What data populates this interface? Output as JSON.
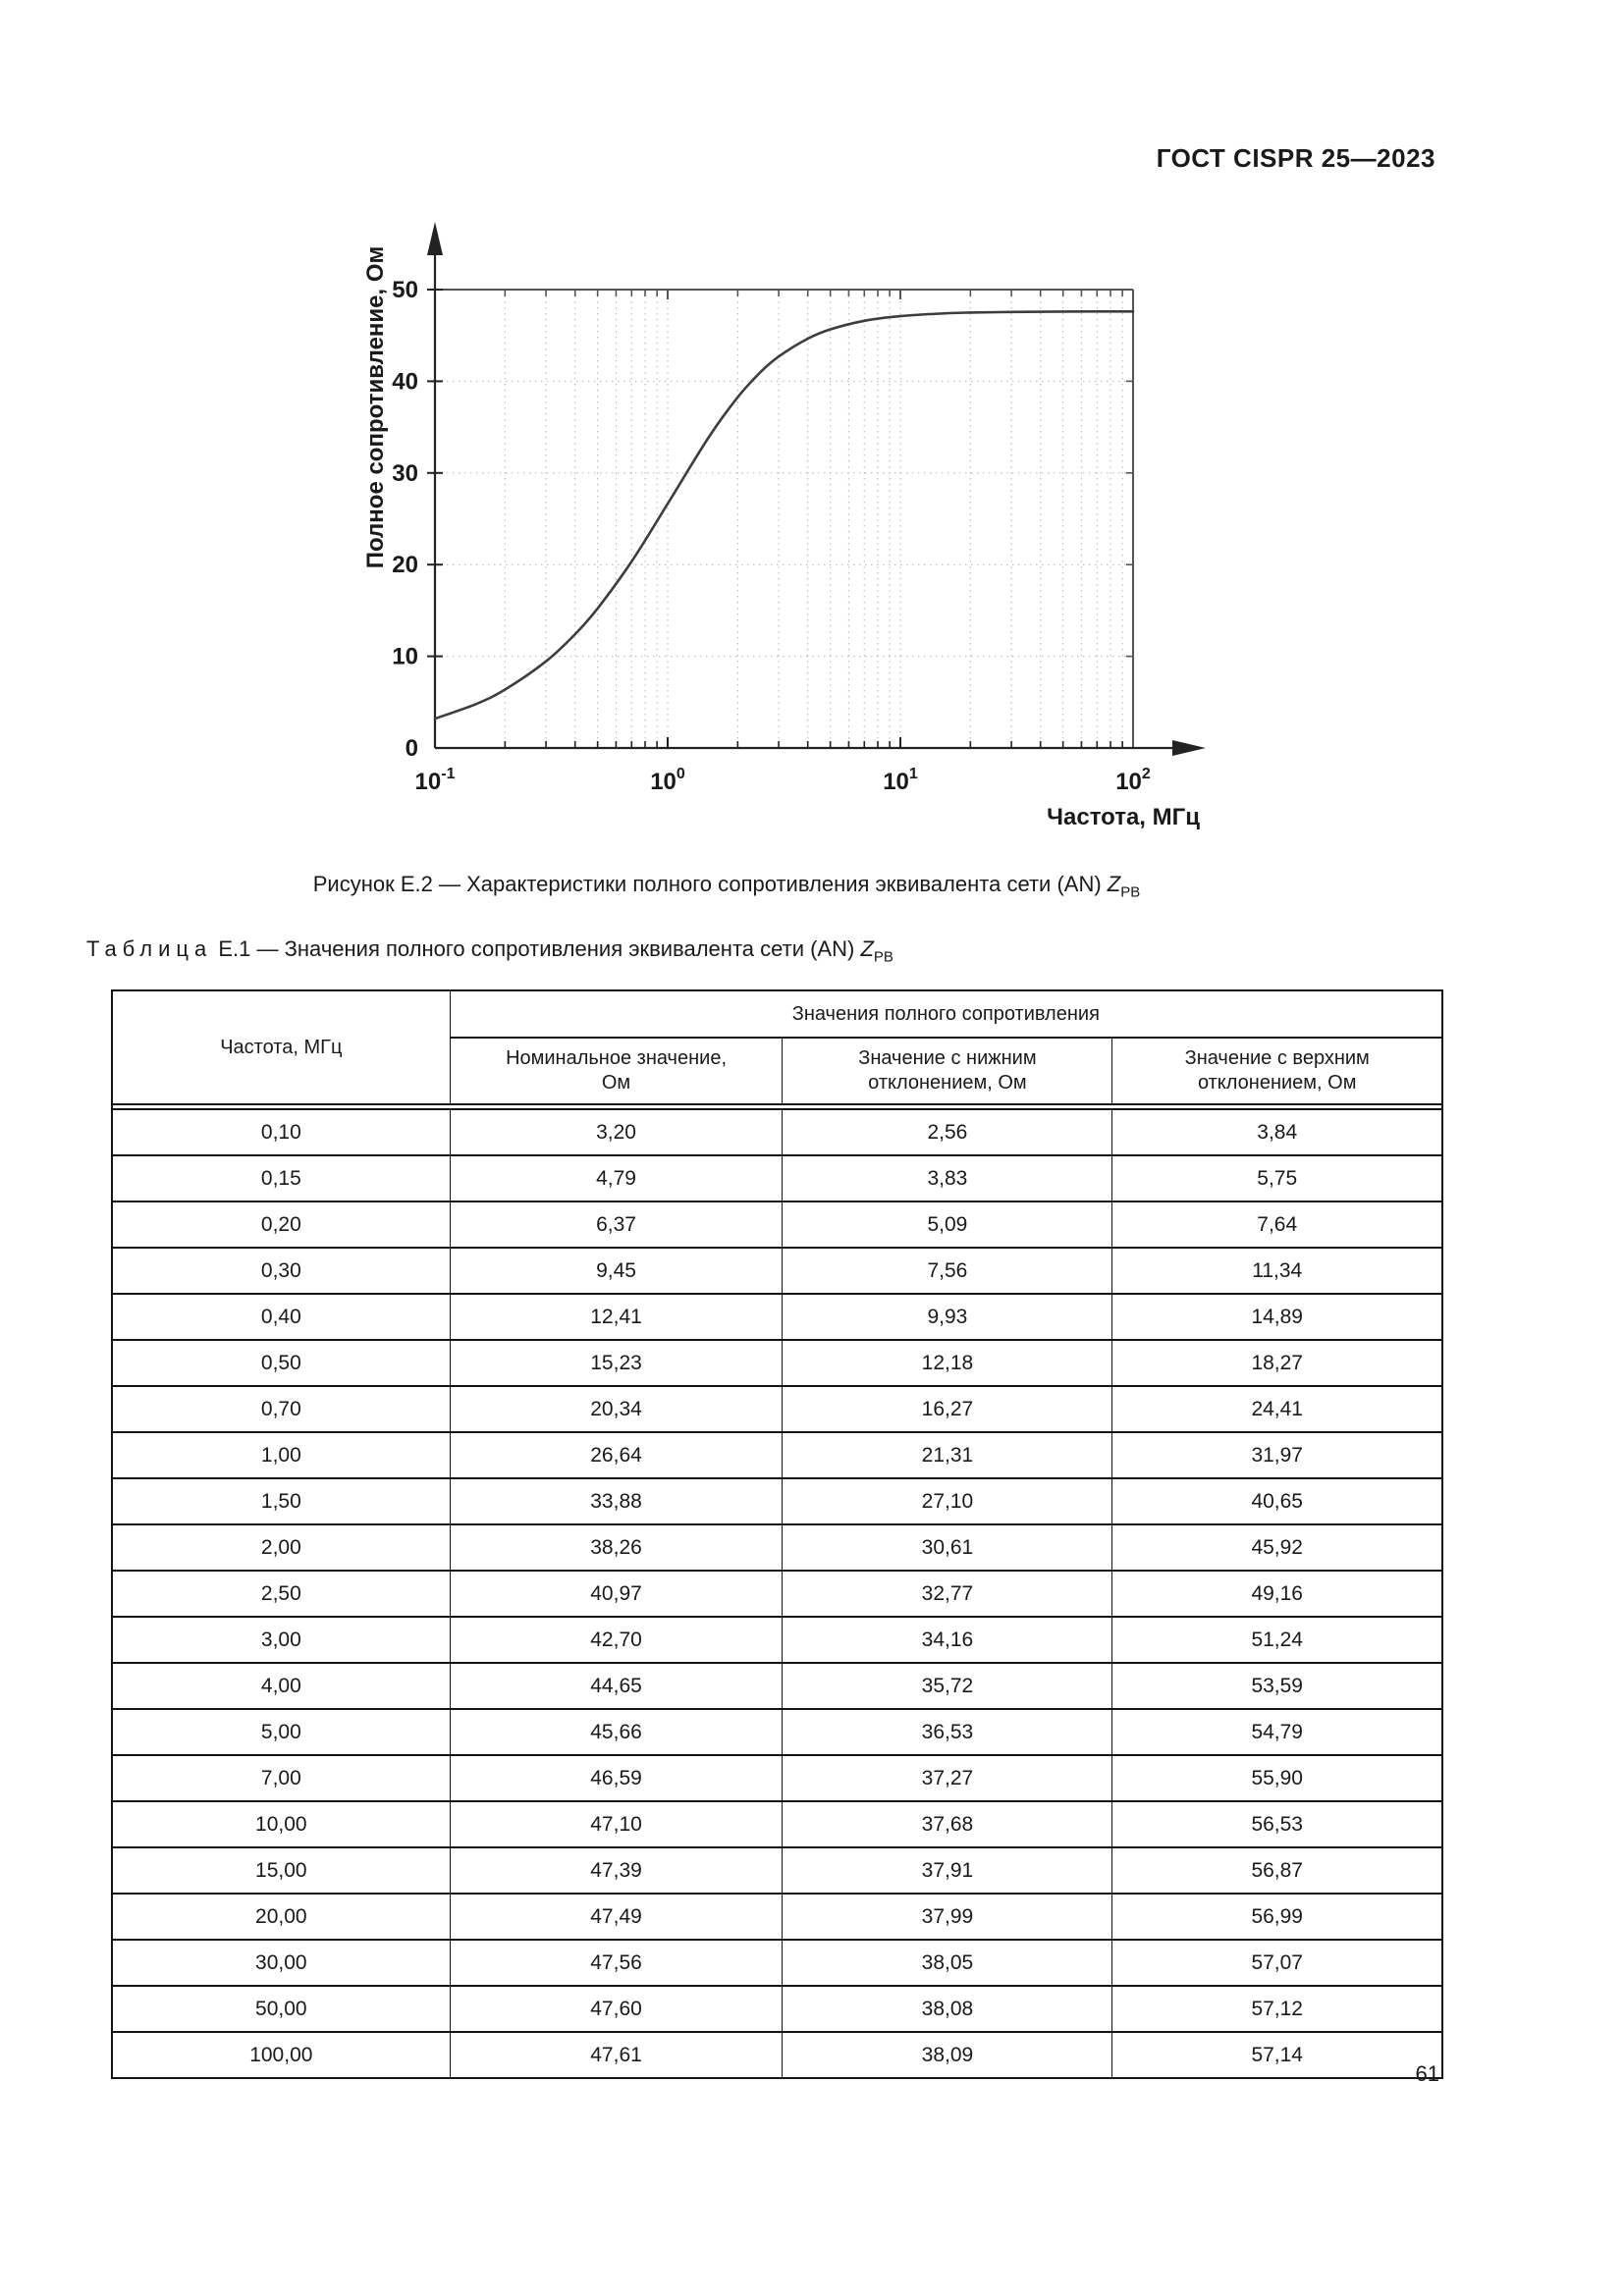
{
  "page": {
    "header_title": "ГОСТ CISPR 25—2023",
    "page_number": "61"
  },
  "figure_caption": {
    "prefix": "Рисунок Е.2 — Характеристики полного сопротивления эквивалента сети (AN) ",
    "symbol": "Z",
    "subscript": "РВ"
  },
  "table_caption": {
    "word": "Таблица",
    "rest": " Е.1 — Значения полного сопротивления эквивалента сети (AN) ",
    "symbol": "Z",
    "subscript": "РВ"
  },
  "chart_data": {
    "type": "line",
    "title": "",
    "xlabel": "Частота, МГц",
    "ylabel": "Полное сопротивление, Ом",
    "x_scale": "log",
    "xlim": [
      0.1,
      100
    ],
    "ylim": [
      0,
      50
    ],
    "y_ticks": [
      0,
      10,
      20,
      30,
      40,
      50
    ],
    "x_tick_base": "10",
    "x_tick_exponents": [
      "-1",
      "0",
      "1",
      "2"
    ],
    "grid": "dotted log minor grid, horizontal dotted every 10 Ohm",
    "legend": "none",
    "line_color": "#3d3d3d",
    "x": [
      0.1,
      0.15,
      0.2,
      0.3,
      0.4,
      0.5,
      0.7,
      1,
      1.5,
      2,
      2.5,
      3,
      4,
      5,
      7,
      10,
      15,
      20,
      30,
      50,
      100
    ],
    "series": [
      {
        "name": "Номинальное значение, Ом",
        "values": [
          3.2,
          4.79,
          6.37,
          9.45,
          12.41,
          15.23,
          20.34,
          26.64,
          33.88,
          38.26,
          40.97,
          42.7,
          44.65,
          45.66,
          46.59,
          47.1,
          47.39,
          47.49,
          47.56,
          47.6,
          47.61
        ]
      }
    ]
  },
  "table": {
    "col1_header": "Частота, МГц",
    "group_header": "Значения полного сопротивления",
    "sub_headers": [
      "Номинальное значение,\nОм",
      "Значение с нижним\nотклонением, Ом",
      "Значение с верхним\nотклонением, Ом"
    ],
    "rows": [
      [
        "0,10",
        "3,20",
        "2,56",
        "3,84"
      ],
      [
        "0,15",
        "4,79",
        "3,83",
        "5,75"
      ],
      [
        "0,20",
        "6,37",
        "5,09",
        "7,64"
      ],
      [
        "0,30",
        "9,45",
        "7,56",
        "11,34"
      ],
      [
        "0,40",
        "12,41",
        "9,93",
        "14,89"
      ],
      [
        "0,50",
        "15,23",
        "12,18",
        "18,27"
      ],
      [
        "0,70",
        "20,34",
        "16,27",
        "24,41"
      ],
      [
        "1,00",
        "26,64",
        "21,31",
        "31,97"
      ],
      [
        "1,50",
        "33,88",
        "27,10",
        "40,65"
      ],
      [
        "2,00",
        "38,26",
        "30,61",
        "45,92"
      ],
      [
        "2,50",
        "40,97",
        "32,77",
        "49,16"
      ],
      [
        "3,00",
        "42,70",
        "34,16",
        "51,24"
      ],
      [
        "4,00",
        "44,65",
        "35,72",
        "53,59"
      ],
      [
        "5,00",
        "45,66",
        "36,53",
        "54,79"
      ],
      [
        "7,00",
        "46,59",
        "37,27",
        "55,90"
      ],
      [
        "10,00",
        "47,10",
        "37,68",
        "56,53"
      ],
      [
        "15,00",
        "47,39",
        "37,91",
        "56,87"
      ],
      [
        "20,00",
        "47,49",
        "37,99",
        "56,99"
      ],
      [
        "30,00",
        "47,56",
        "38,05",
        "57,07"
      ],
      [
        "50,00",
        "47,60",
        "38,08",
        "57,12"
      ],
      [
        "100,00",
        "47,61",
        "38,09",
        "57,14"
      ]
    ]
  }
}
